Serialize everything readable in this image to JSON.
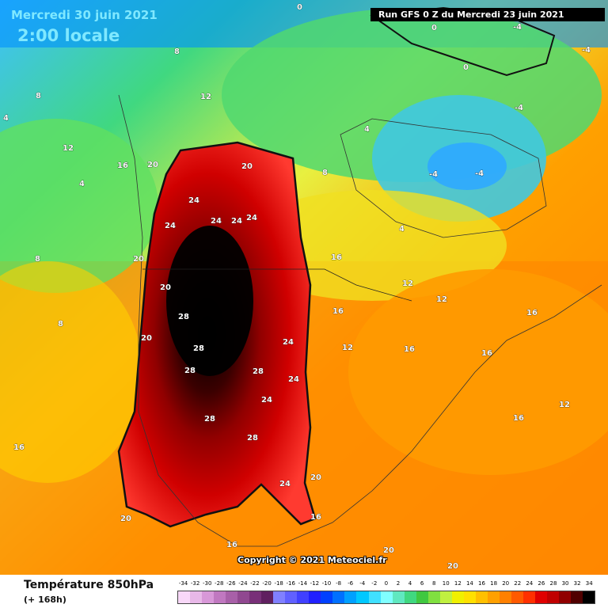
{
  "header": {
    "date": "Mercredi 30 juin 2021",
    "time": "2:00 locale",
    "run": "Run GFS 0 Z du Mercredi 23 juin 2021"
  },
  "footer": {
    "variable": "Température 850hPa",
    "lead": "(+ 168h)",
    "copyright": "Copyright © 2021 Meteociel.fr"
  },
  "legend": {
    "ticks": [
      "-34",
      "-32",
      "-30",
      "-28",
      "-26",
      "-24",
      "-22",
      "-20",
      "-18",
      "-16",
      "-14",
      "-12",
      "-10",
      "-8",
      "-6",
      "-4",
      "-2",
      "0",
      "2",
      "4",
      "6",
      "8",
      "10",
      "12",
      "14",
      "16",
      "18",
      "20",
      "22",
      "24",
      "26",
      "28",
      "30",
      "32",
      "34"
    ],
    "colors": [
      "#f8d8f8",
      "#e8b8e8",
      "#d898d8",
      "#c078c0",
      "#a860a8",
      "#904890",
      "#783078",
      "#602060",
      "#8080ff",
      "#6060ff",
      "#4040ff",
      "#2020ff",
      "#0040ff",
      "#0070ff",
      "#00a0ff",
      "#00c8ff",
      "#40e0ff",
      "#80ffff",
      "#60e8c0",
      "#40d880",
      "#40c840",
      "#80e040",
      "#c0f040",
      "#f0f000",
      "#ffe000",
      "#ffc000",
      "#ffa000",
      "#ff8000",
      "#ff5a00",
      "#ff3000",
      "#e00000",
      "#c00000",
      "#900000",
      "#500000",
      "#000000"
    ]
  },
  "isotherm_labels": [
    "0",
    "-4",
    "4",
    "8",
    "12",
    "16",
    "20",
    "24",
    "28"
  ]
}
